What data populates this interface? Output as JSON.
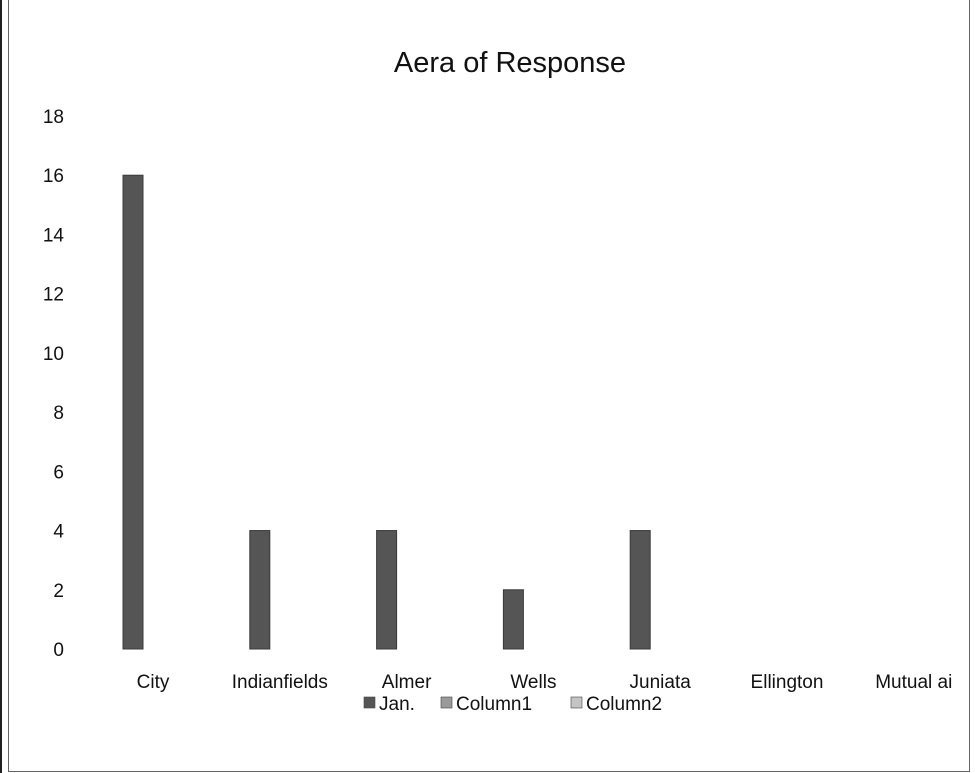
{
  "chart_data": {
    "type": "bar",
    "title": "Aera of Response",
    "xlabel": "",
    "ylabel": "",
    "categories": [
      "City",
      "Indianfields",
      "Almer",
      "Wells",
      "Juniata",
      "Ellington",
      "Mutual ai"
    ],
    "series": [
      {
        "name": "Jan.",
        "values": [
          16,
          4,
          4,
          2,
          4,
          0,
          0
        ],
        "color": "#555555"
      },
      {
        "name": "Column1",
        "values": [
          null,
          null,
          null,
          null,
          null,
          null,
          null
        ],
        "color": "#9a9a9a"
      },
      {
        "name": "Column2",
        "values": [
          null,
          null,
          null,
          null,
          null,
          null,
          null
        ],
        "color": "#c4c4c4"
      }
    ],
    "ylim": [
      0,
      18
    ],
    "yticks": [
      "0",
      "2",
      "4",
      "6",
      "8",
      "10",
      "12",
      "14",
      "16",
      "18"
    ],
    "grid": false,
    "legend_position": "bottom"
  }
}
